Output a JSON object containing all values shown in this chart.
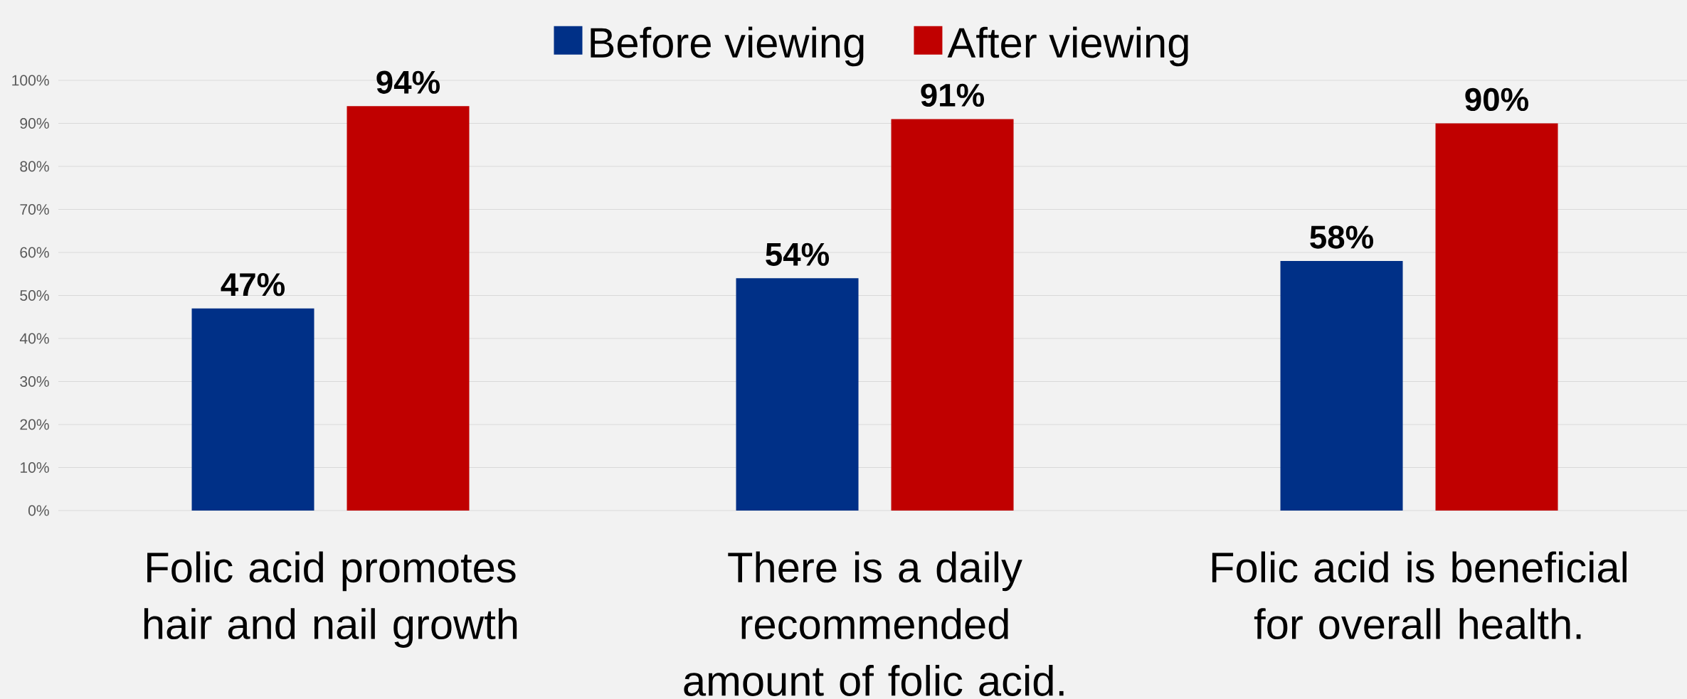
{
  "chart_data": {
    "type": "bar",
    "categories": [
      "Folic acid promotes hair and nail growth",
      "There is a daily recommended amount of folic acid.",
      "Folic acid is beneficial for overall health."
    ],
    "series": [
      {
        "name": "Before viewing",
        "color": "#003087",
        "values": [
          47,
          54,
          58
        ],
        "value_labels": [
          "47%",
          "54%",
          "58%"
        ]
      },
      {
        "name": "After viewing",
        "color": "#c00000",
        "values": [
          94,
          91,
          90
        ],
        "value_labels": [
          "94%",
          "91%",
          "90%"
        ]
      }
    ],
    "ylim": [
      0,
      100
    ],
    "yticks": [
      {
        "value": 0,
        "label": "0%"
      },
      {
        "value": 10,
        "label": "10%"
      },
      {
        "value": 20,
        "label": "20%"
      },
      {
        "value": 30,
        "label": "30%"
      },
      {
        "value": 40,
        "label": "40%"
      },
      {
        "value": 50,
        "label": "50%"
      },
      {
        "value": 60,
        "label": "60%"
      },
      {
        "value": 70,
        "label": "70%"
      },
      {
        "value": 80,
        "label": "80%"
      },
      {
        "value": 90,
        "label": "90%"
      },
      {
        "value": 100,
        "label": "100%"
      }
    ],
    "grid": "y",
    "legend": "top"
  }
}
